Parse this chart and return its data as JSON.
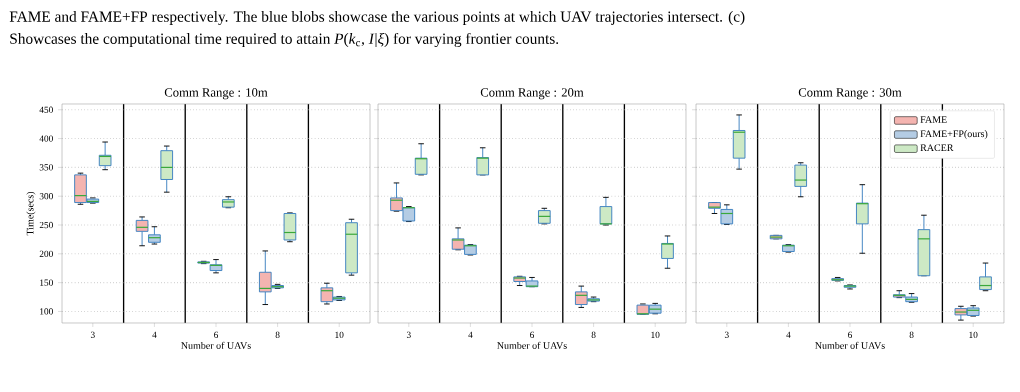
{
  "chart_data": [
    {
      "type": "box",
      "title": "Comm Range : 10m",
      "xlabel": "Number of UAVs",
      "ylabel": "Time(secs)",
      "annotations": [
        "FAME and FAME+FP respectively. The blue blobs showcase the various points at which UAV trajectories intersect. (c)",
        "Showcases the computational time required to attain *P*(*k*$_{c}$, *I*|*ξ*) for varying frontier counts."
      ],
      "categories": [
        "3",
        "4",
        "6",
        "8",
        "10"
      ],
      "ylim": [
        80,
        460
      ],
      "yticks": [
        100,
        150,
        200,
        250,
        300,
        350,
        400,
        450
      ],
      "grid": "y",
      "series": [
        {
          "color": "#f4b4b0",
          "boxes": [
            {
              "low": 286,
              "q1": 289,
              "median": 301,
              "q3": 337,
              "high": 340
            },
            {
              "low": 214,
              "q1": 239,
              "median": 246,
              "q3": 258,
              "high": 264
            },
            {
              "low": 183,
              "q1": 184,
              "median": 185,
              "q3": 186,
              "high": 187
            },
            {
              "low": 112,
              "q1": 134,
              "median": 140,
              "q3": 168,
              "high": 205
            },
            {
              "low": 113,
              "q1": 117,
              "median": 136,
              "q3": 141,
              "high": 149
            }
          ]
        },
        {
          "color": "#b4cce4",
          "boxes": [
            {
              "low": 288,
              "q1": 289,
              "median": 291,
              "q3": 295,
              "high": 297
            },
            {
              "low": 217,
              "q1": 220,
              "median": 228,
              "q3": 233,
              "high": 247
            },
            {
              "low": 167,
              "q1": 171,
              "median": 180,
              "q3": 181,
              "high": 190
            },
            {
              "low": 140,
              "q1": 141,
              "median": 143,
              "q3": 145,
              "high": 147
            },
            {
              "low": 119,
              "q1": 120,
              "median": 123,
              "q3": 125,
              "high": 126
            }
          ]
        },
        {
          "color": "#cde9c5",
          "boxes": [
            {
              "low": 346,
              "q1": 353,
              "median": 369,
              "q3": 371,
              "high": 394
            },
            {
              "low": 307,
              "q1": 329,
              "median": 350,
              "q3": 379,
              "high": 387
            },
            {
              "low": 280,
              "q1": 281,
              "median": 290,
              "q3": 294,
              "high": 299
            },
            {
              "low": 221,
              "q1": 224,
              "median": 237,
              "q3": 270,
              "high": 271
            },
            {
              "low": 163,
              "q1": 167,
              "median": 234,
              "q3": 254,
              "high": 260
            }
          ]
        }
      ]
    },
    {
      "type": "box",
      "title": "Comm Range : 20m",
      "xlabel": "Number of UAVs",
      "tick_labels": "x",
      "categories": [
        "3",
        "4",
        "6",
        "8",
        "10"
      ],
      "ylim": [
        80,
        460
      ],
      "yticks": [
        100,
        150,
        200,
        250,
        300,
        350,
        400,
        450
      ],
      "grid": "y",
      "series": [
        {
          "color": "#f4b4b0",
          "boxes": [
            {
              "low": 274,
              "q1": 275,
              "median": 293,
              "q3": 297,
              "high": 323
            },
            {
              "low": 207,
              "q1": 208,
              "median": 224,
              "q3": 226,
              "high": 245
            },
            {
              "low": 145,
              "q1": 152,
              "median": 158,
              "q3": 160,
              "high": 161
            },
            {
              "low": 107,
              "q1": 112,
              "median": 128,
              "q3": 134,
              "high": 144
            },
            {
              "low": 95,
              "q1": 95,
              "median": 96,
              "q3": 111,
              "high": 113
            }
          ]
        },
        {
          "color": "#b4cce4",
          "boxes": [
            {
              "low": 256,
              "q1": 257,
              "median": 280,
              "q3": 280,
              "high": 282
            },
            {
              "low": 198,
              "q1": 199,
              "median": 214,
              "q3": 215,
              "high": 216
            },
            {
              "low": 143,
              "q1": 143,
              "median": 144,
              "q3": 153,
              "high": 159
            },
            {
              "low": 117,
              "q1": 118,
              "median": 120,
              "q3": 122,
              "high": 125
            },
            {
              "low": 96,
              "q1": 97,
              "median": 104,
              "q3": 111,
              "high": 114
            }
          ]
        },
        {
          "color": "#cde9c5",
          "boxes": [
            {
              "low": 337,
              "q1": 338,
              "median": 365,
              "q3": 366,
              "high": 391
            },
            {
              "low": 337,
              "q1": 337,
              "median": 366,
              "q3": 367,
              "high": 384
            },
            {
              "low": 252,
              "q1": 253,
              "median": 265,
              "q3": 275,
              "high": 279
            },
            {
              "low": 250,
              "q1": 252,
              "median": 252,
              "q3": 282,
              "high": 298
            },
            {
              "low": 175,
              "q1": 192,
              "median": 217,
              "q3": 218,
              "high": 231
            }
          ]
        }
      ]
    },
    {
      "type": "box",
      "title": "Comm Range : 30m",
      "xlabel": "Number of UAVs",
      "tick_labels": "x",
      "legend": "top right",
      "categories": [
        "3",
        "4",
        "6",
        "8",
        "10"
      ],
      "ylim": [
        80,
        460
      ],
      "yticks": [
        100,
        150,
        200,
        250,
        300,
        350,
        400,
        450
      ],
      "grid": "y",
      "series": [
        {
          "name": "FAME",
          "color": "#f4b4b0",
          "boxes": [
            {
              "low": 270,
              "q1": 279,
              "median": 281,
              "q3": 289,
              "high": 289
            },
            {
              "low": 226,
              "q1": 226,
              "median": 229,
              "q3": 232,
              "high": 232
            },
            {
              "low": 153,
              "q1": 154,
              "median": 155,
              "q3": 157,
              "high": 159
            },
            {
              "low": 124,
              "q1": 125,
              "median": 128,
              "q3": 129,
              "high": 136
            },
            {
              "low": 85,
              "q1": 94,
              "median": 99,
              "q3": 105,
              "high": 109
            }
          ]
        },
        {
          "name": "FAME+FP(ours)",
          "color": "#b4cce4",
          "boxes": [
            {
              "low": 251,
              "q1": 252,
              "median": 270,
              "q3": 277,
              "high": 285
            },
            {
              "low": 203,
              "q1": 204,
              "median": 214,
              "q3": 215,
              "high": 216
            },
            {
              "low": 139,
              "q1": 142,
              "median": 144,
              "q3": 145,
              "high": 146
            },
            {
              "low": 116,
              "q1": 117,
              "median": 121,
              "q3": 125,
              "high": 131
            },
            {
              "low": 92,
              "q1": 93,
              "median": 102,
              "q3": 106,
              "high": 110
            }
          ]
        },
        {
          "name": "RACER",
          "color": "#cde9c5",
          "boxes": [
            {
              "low": 347,
              "q1": 366,
              "median": 411,
              "q3": 414,
              "high": 441
            },
            {
              "low": 299,
              "q1": 317,
              "median": 328,
              "q3": 354,
              "high": 358
            },
            {
              "low": 201,
              "q1": 252,
              "median": 287,
              "q3": 288,
              "high": 320
            },
            {
              "low": 162,
              "q1": 162,
              "median": 226,
              "q3": 242,
              "high": 267
            },
            {
              "low": 136,
              "q1": 138,
              "median": 145,
              "q3": 160,
              "high": 184
            }
          ]
        }
      ]
    }
  ]
}
